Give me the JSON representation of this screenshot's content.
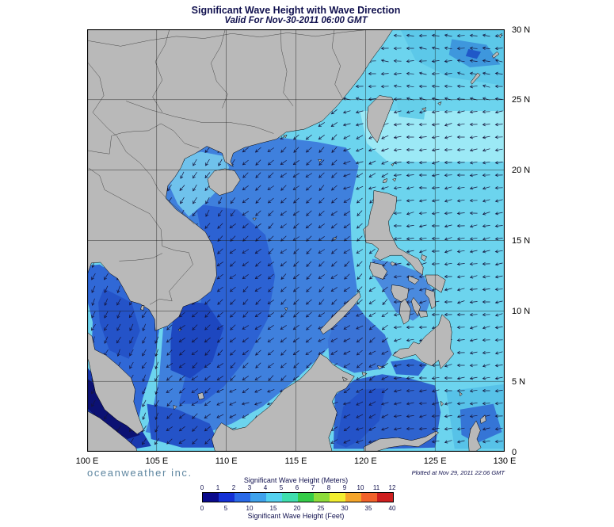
{
  "title": "Significant Wave Height with Wave Direction",
  "subtitle": "Valid For Nov-30-2011 06:00 GMT",
  "branding": "oceanweather inc.",
  "plotted_at": "Plotted at Nov 29, 2011 22:06 GMT",
  "axes": {
    "lon_labels": [
      "100 E",
      "105 E",
      "110 E",
      "115 E",
      "120 E",
      "125 E",
      "130 E"
    ],
    "lon_values": [
      100,
      105,
      110,
      115,
      120,
      125,
      130
    ],
    "lat_labels": [
      "30 N",
      "25 N",
      "20 N",
      "15 N",
      "10 N",
      "5 N",
      "0"
    ],
    "lat_values": [
      30,
      25,
      20,
      15,
      10,
      5,
      0
    ]
  },
  "legend": {
    "meters_title": "Significant Wave Height (Meters)",
    "feet_title": "Significant Wave Height (Feet)",
    "meters_ticks": [
      "0",
      "1",
      "2",
      "3",
      "4",
      "5",
      "6",
      "7",
      "8",
      "9",
      "10",
      "11",
      "12"
    ],
    "feet_ticks": [
      "0",
      "5",
      "10",
      "15",
      "20",
      "25",
      "30",
      "35",
      "40"
    ],
    "palette": [
      "#0a0a8c",
      "#1431d6",
      "#2a6ae8",
      "#3fa2ec",
      "#55d2f0",
      "#3fdfae",
      "#35cc48",
      "#8edc3a",
      "#f2ee30",
      "#f5a52a",
      "#f2622a",
      "#cf1f1f"
    ]
  },
  "chart_data": {
    "type": "heatmap",
    "quantity": "significant wave height",
    "units_primary": "meters",
    "units_secondary": "feet",
    "scale_meters": [
      0,
      12
    ],
    "scale_feet": [
      0,
      40
    ],
    "region": {
      "lon": [
        100,
        130
      ],
      "lat": [
        0,
        30
      ]
    },
    "overlay": "wave direction arrows"
  }
}
